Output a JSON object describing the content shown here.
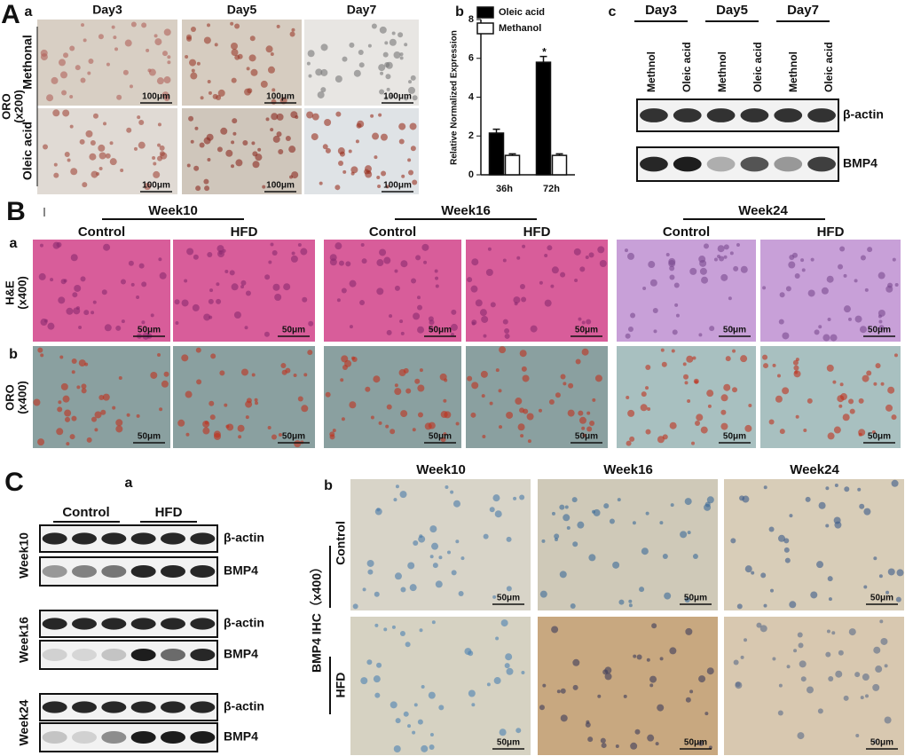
{
  "chart_data": {
    "type": "bar",
    "panel_label": "b",
    "ylabel": "Relative Normalized Expression",
    "categories": [
      "36h",
      "72h"
    ],
    "series": [
      {
        "name": "Oleic acid",
        "color": "#000000",
        "values": [
          2.15,
          5.8
        ],
        "errors": [
          0.2,
          0.3
        ]
      },
      {
        "name": "Methanol",
        "color": "#ffffff",
        "values": [
          1.0,
          1.0
        ],
        "errors": [
          0.08,
          0.08
        ]
      }
    ],
    "ylim": [
      0,
      8
    ],
    "yticks": [
      0,
      2,
      4,
      6,
      8
    ],
    "annotation": "*"
  },
  "panel_A": {
    "label": "A",
    "sub_label": "a",
    "columns": [
      "Day3",
      "Day5",
      "Day7"
    ],
    "rows": [
      "Methonal",
      "Oleic acid"
    ],
    "stain": [
      "ORO",
      "(x200)"
    ],
    "scale": "100μm"
  },
  "blot_c": {
    "label": "c",
    "columns": [
      "Day3",
      "Day5",
      "Day7"
    ],
    "lanes": [
      "Methnol",
      "Oleic acid",
      "Methnol",
      "Oleic acid",
      "Methnol",
      "Oleic acid"
    ],
    "bands": [
      "β-actin",
      "BMP4"
    ]
  },
  "panel_B": {
    "label": "B",
    "weeks": [
      "Week10",
      "Week16",
      "Week24"
    ],
    "groups": [
      "Control",
      "HFD"
    ],
    "rows": [
      {
        "label": "a",
        "stain": [
          "H&E",
          "(x400)"
        ]
      },
      {
        "label": "b",
        "stain": [
          "ORO",
          "(x400)"
        ]
      }
    ],
    "scale": "50μm"
  },
  "panel_C": {
    "label": "C",
    "a": {
      "label": "a",
      "groups": [
        "Control",
        "HFD"
      ],
      "weeks": [
        "Week10",
        "Week16",
        "Week24"
      ],
      "bands": [
        "β-actin",
        "BMP4"
      ]
    },
    "b": {
      "label": "b",
      "weeks": [
        "Week10",
        "Week16",
        "Week24"
      ],
      "rows": [
        "Control",
        "HFD"
      ],
      "axis": "BMP4 IHC（x400）",
      "scale": "50μm"
    }
  }
}
